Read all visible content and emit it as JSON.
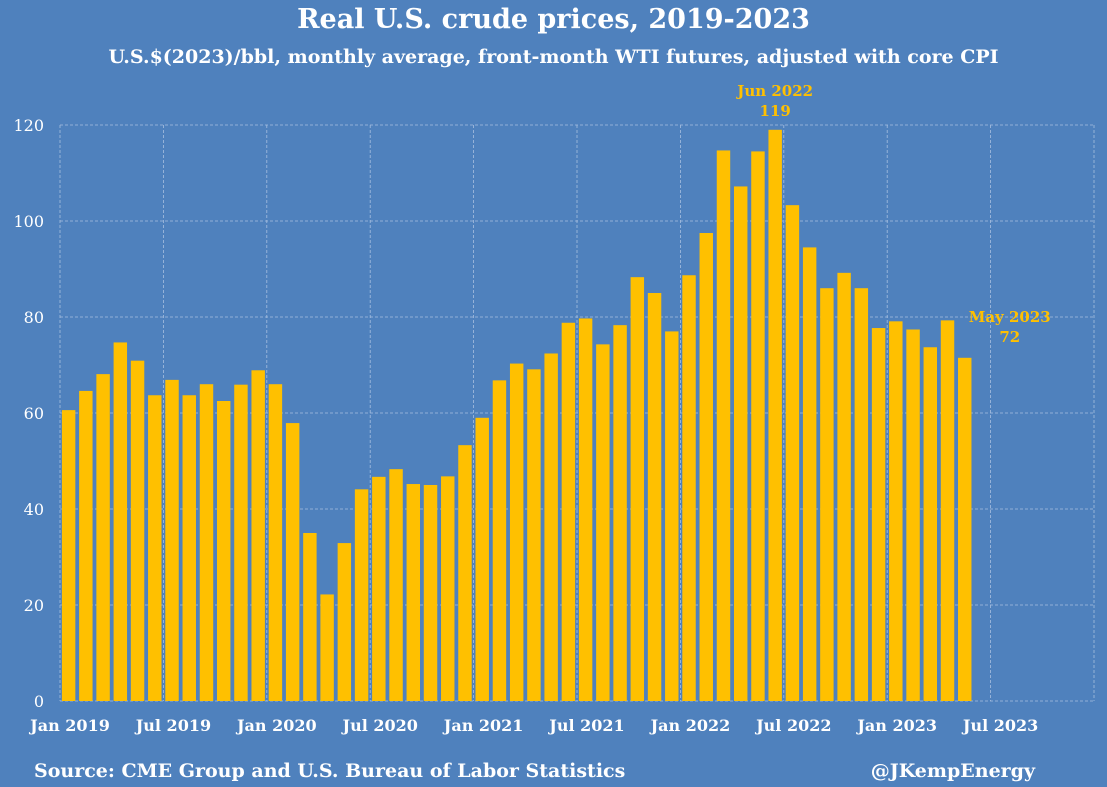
{
  "colors": {
    "background": "#4f81bd",
    "bar": "#ffc000",
    "text": "#ffffff",
    "annotation": "#ffc000",
    "grid": "#a7bfdf"
  },
  "footer": {
    "source": "Source: CME Group and U.S. Bureau of Labor Statistics",
    "handle": "@JKempEnergy"
  },
  "chart_data": {
    "type": "bar",
    "title": "Real U.S. crude prices, 2019-2023",
    "subtitle": "U.S.$(2023)/bbl, monthly average, front-month WTI futures, adjusted with core CPI",
    "xlabel": "",
    "ylabel": "",
    "ylim": [
      0,
      120
    ],
    "yticks": [
      0,
      20,
      40,
      60,
      80,
      100,
      120
    ],
    "grid": true,
    "categories": [
      "Jan 2019",
      "Feb 2019",
      "Mar 2019",
      "Apr 2019",
      "May 2019",
      "Jun 2019",
      "Jul 2019",
      "Aug 2019",
      "Sep 2019",
      "Oct 2019",
      "Nov 2019",
      "Dec 2019",
      "Jan 2020",
      "Feb 2020",
      "Mar 2020",
      "Apr 2020",
      "May 2020",
      "Jun 2020",
      "Jul 2020",
      "Aug 2020",
      "Sep 2020",
      "Oct 2020",
      "Nov 2020",
      "Dec 2020",
      "Jan 2021",
      "Feb 2021",
      "Mar 2021",
      "Apr 2021",
      "May 2021",
      "Jun 2021",
      "Jul 2021",
      "Aug 2021",
      "Sep 2021",
      "Oct 2021",
      "Nov 2021",
      "Dec 2021",
      "Jan 2022",
      "Feb 2022",
      "Mar 2022",
      "Apr 2022",
      "May 2022",
      "Jun 2022",
      "Jul 2022",
      "Aug 2022",
      "Sep 2022",
      "Oct 2022",
      "Nov 2022",
      "Dec 2022",
      "Jan 2023",
      "Feb 2023",
      "Mar 2023",
      "Apr 2023",
      "May 2023",
      "Jun 2023",
      "Jul 2023",
      "Aug 2023",
      "Sep 2023",
      "Oct 2023",
      "Nov 2023",
      "Dec 2023"
    ],
    "values": [
      60.6,
      64.6,
      68.1,
      74.7,
      70.9,
      63.7,
      66.9,
      63.7,
      66.0,
      62.5,
      65.9,
      68.9,
      66.0,
      57.9,
      35.0,
      22.2,
      32.9,
      44.1,
      46.7,
      48.3,
      45.2,
      45.0,
      46.8,
      53.3,
      59.0,
      66.8,
      70.3,
      69.1,
      72.4,
      78.8,
      79.7,
      74.3,
      78.3,
      88.3,
      85.0,
      77.0,
      88.7,
      97.5,
      114.7,
      107.2,
      114.5,
      119.0,
      103.3,
      94.5,
      86.0,
      89.2,
      86.0,
      77.7,
      79.1,
      77.4,
      73.7,
      79.3,
      71.5,
      null,
      null,
      null,
      null,
      null,
      null,
      null
    ],
    "x_tick_labels": [
      {
        "index": 0,
        "label": "Jan 2019"
      },
      {
        "index": 6,
        "label": "Jul 2019"
      },
      {
        "index": 12,
        "label": "Jan 2020"
      },
      {
        "index": 18,
        "label": "Jul 2020"
      },
      {
        "index": 24,
        "label": "Jan 2021"
      },
      {
        "index": 30,
        "label": "Jul 2021"
      },
      {
        "index": 36,
        "label": "Jan 2022"
      },
      {
        "index": 42,
        "label": "Jul 2022"
      },
      {
        "index": 48,
        "label": "Jan 2023"
      },
      {
        "index": 54,
        "label": "Jul 2023"
      }
    ],
    "annotations": [
      {
        "index": 41,
        "line1": "Jun 2022",
        "line2": "119"
      },
      {
        "index": 52,
        "line1": "May 2023",
        "line2": "72"
      }
    ]
  }
}
